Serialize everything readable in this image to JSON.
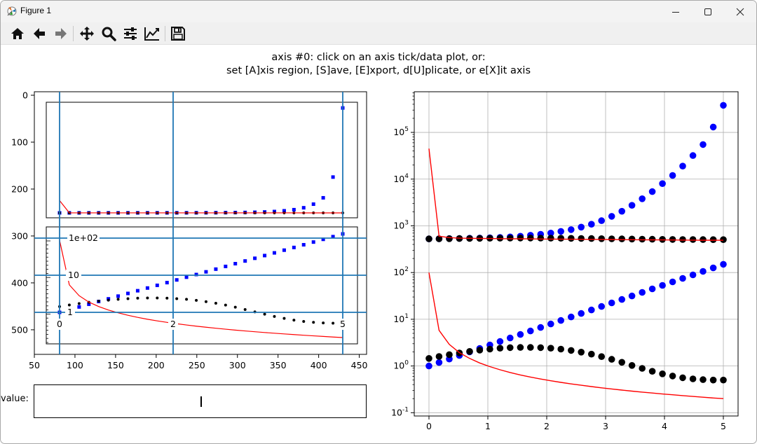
{
  "window": {
    "title": "Figure 1",
    "icon": "matplotlib-icon",
    "controls": [
      "minimize-icon",
      "maximize-icon",
      "close-icon"
    ]
  },
  "toolbar": {
    "buttons": [
      "home-icon",
      "back-icon",
      "forward-icon",
      "pan-icon",
      "zoom-icon",
      "subplots-config-icon",
      "axes-edit-icon",
      "save-icon"
    ]
  },
  "figure": {
    "instruction_line1": "axis #0: click on an axis tick/data plot, or:",
    "instruction_line2": "set [A]xis region, [S]ave, [E]xport, d[U]plicate, or e[X]it axis"
  },
  "image_axes": {
    "x_ticks": [
      "50",
      "100",
      "150",
      "200",
      "250",
      "300",
      "350",
      "400",
      "450"
    ],
    "y_ticks": [
      "0",
      "100",
      "200",
      "300",
      "400",
      "500"
    ],
    "inset_labels": [
      "1e+02",
      "10",
      "1",
      "0",
      "2",
      "5"
    ]
  },
  "value_input": {
    "label": "value:",
    "value": ""
  },
  "chart_data": {
    "type": "scatter",
    "log_scale_y": true,
    "grid": true,
    "xlim": [
      -0.25,
      5.25
    ],
    "x_ticks": [
      "0",
      "1",
      "2",
      "3",
      "4",
      "5"
    ],
    "y_ticks": [
      "10^-1",
      "10^0",
      "10^1",
      "10^2",
      "10^3",
      "10^4",
      "10^5"
    ],
    "x": [
      0,
      0.172,
      0.345,
      0.517,
      0.69,
      0.862,
      1.034,
      1.207,
      1.379,
      1.552,
      1.724,
      1.897,
      2.069,
      2.241,
      2.414,
      2.586,
      2.759,
      2.931,
      3.103,
      3.276,
      3.448,
      3.621,
      3.793,
      3.966,
      4.138,
      4.31,
      4.483,
      4.655,
      4.828,
      5.0
    ],
    "series": [
      {
        "color": "#0000ff",
        "marker": "o",
        "values": [
          1.0,
          1.19,
          1.41,
          1.68,
          2.0,
          2.37,
          2.82,
          3.35,
          3.98,
          4.73,
          5.62,
          6.68,
          7.94,
          9.44,
          11.2,
          13.3,
          15.8,
          18.8,
          22.4,
          26.6,
          31.6,
          37.6,
          44.7,
          53.1,
          63.1,
          75.0,
          89.1,
          106,
          126,
          150
        ]
      },
      {
        "color": "#000000",
        "marker": "o",
        "values": [
          1.45,
          1.6,
          1.75,
          1.9,
          2.05,
          2.18,
          2.3,
          2.4,
          2.47,
          2.5,
          2.5,
          2.47,
          2.4,
          2.3,
          2.15,
          1.98,
          1.79,
          1.59,
          1.39,
          1.2,
          1.03,
          0.89,
          0.77,
          0.68,
          0.61,
          0.56,
          0.53,
          0.51,
          0.5,
          0.5
        ]
      },
      {
        "color": "#ff0000",
        "marker": "line",
        "values": [
          100,
          5.8,
          2.9,
          1.93,
          1.45,
          1.16,
          0.97,
          0.83,
          0.725,
          0.644,
          0.58,
          0.527,
          0.483,
          0.446,
          0.414,
          0.387,
          0.363,
          0.341,
          0.322,
          0.305,
          0.29,
          0.276,
          0.264,
          0.252,
          0.242,
          0.232,
          0.223,
          0.215,
          0.207,
          0.2
        ]
      },
      {
        "color": "#0000ff",
        "marker": "o",
        "values": [
          525,
          530,
          533,
          537,
          542,
          548,
          556,
          566,
          580,
          600,
          630,
          660,
          700,
          760,
          830,
          940,
          1080,
          1290,
          1600,
          2050,
          2750,
          3800,
          5400,
          8000,
          12000,
          19000,
          32000,
          55000,
          130000,
          380000
        ]
      },
      {
        "color": "#000000",
        "marker": "o",
        "values": [
          525,
          528,
          531,
          534,
          537,
          540,
          543,
          545,
          547,
          548,
          548,
          547,
          545,
          543,
          540,
          537,
          534,
          531,
          528,
          525,
          522,
          519,
          516,
          514,
          512,
          510,
          509,
          508,
          507,
          507
        ]
      },
      {
        "color": "#ff0000",
        "marker": "line",
        "values": [
          45000,
          600,
          560,
          545,
          540,
          537,
          534,
          531,
          529,
          527,
          525,
          523,
          521,
          519,
          517,
          515,
          513,
          511,
          509,
          507,
          505,
          503,
          501,
          499,
          497,
          495,
          494,
          493,
          492,
          491
        ]
      }
    ]
  }
}
